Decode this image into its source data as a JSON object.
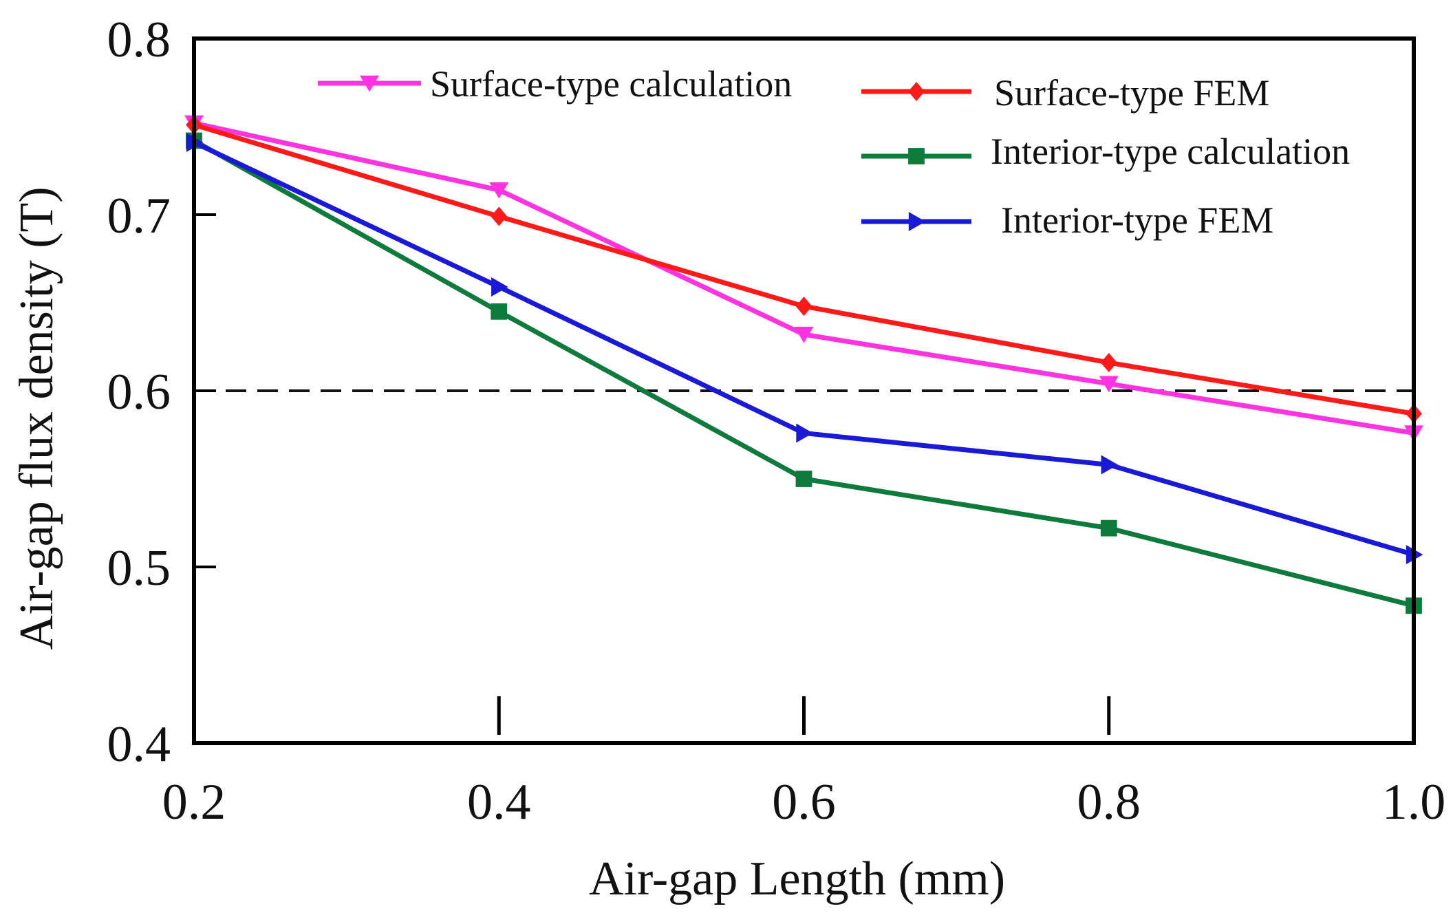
{
  "chart_data": {
    "type": "line",
    "title": "",
    "xlabel": "Air-gap Length (mm)",
    "ylabel": "Air-gap flux density (T)",
    "xlim": [
      0.2,
      1.0
    ],
    "ylim": [
      0.4,
      0.8
    ],
    "xticks": [
      0.2,
      0.4,
      0.6,
      0.8,
      1.0
    ],
    "xtick_labels": [
      "0.2",
      "0.4",
      "0.6",
      "0.8",
      "1.0"
    ],
    "yticks": [
      0.4,
      0.5,
      0.6,
      0.7,
      0.8
    ],
    "ytick_labels": [
      "0.4",
      "0.5",
      "0.6",
      "0.7",
      "0.8"
    ],
    "x": [
      0.2,
      0.4,
      0.6,
      0.8,
      1.0
    ],
    "reference_line": {
      "y": 0.6,
      "style": "dashed",
      "color": "#111111"
    },
    "series": [
      {
        "name": "Surface-type calculation",
        "color": "#ff33e0",
        "marker": "triangle-down",
        "values": [
          0.752,
          0.714,
          0.632,
          0.604,
          0.576
        ]
      },
      {
        "name": "Surface-type FEM",
        "color": "#ff1a1a",
        "marker": "diamond",
        "values": [
          0.751,
          0.699,
          0.648,
          0.616,
          0.587
        ]
      },
      {
        "name": "Interior-type calculation",
        "color": "#0e7a3c",
        "marker": "square",
        "values": [
          0.742,
          0.645,
          0.55,
          0.522,
          0.478
        ]
      },
      {
        "name": "Interior-type FEM",
        "color": "#1a1ad6",
        "marker": "triangle-right",
        "values": [
          0.741,
          0.659,
          0.576,
          0.558,
          0.507
        ]
      }
    ],
    "legend_placement": "top-right"
  }
}
